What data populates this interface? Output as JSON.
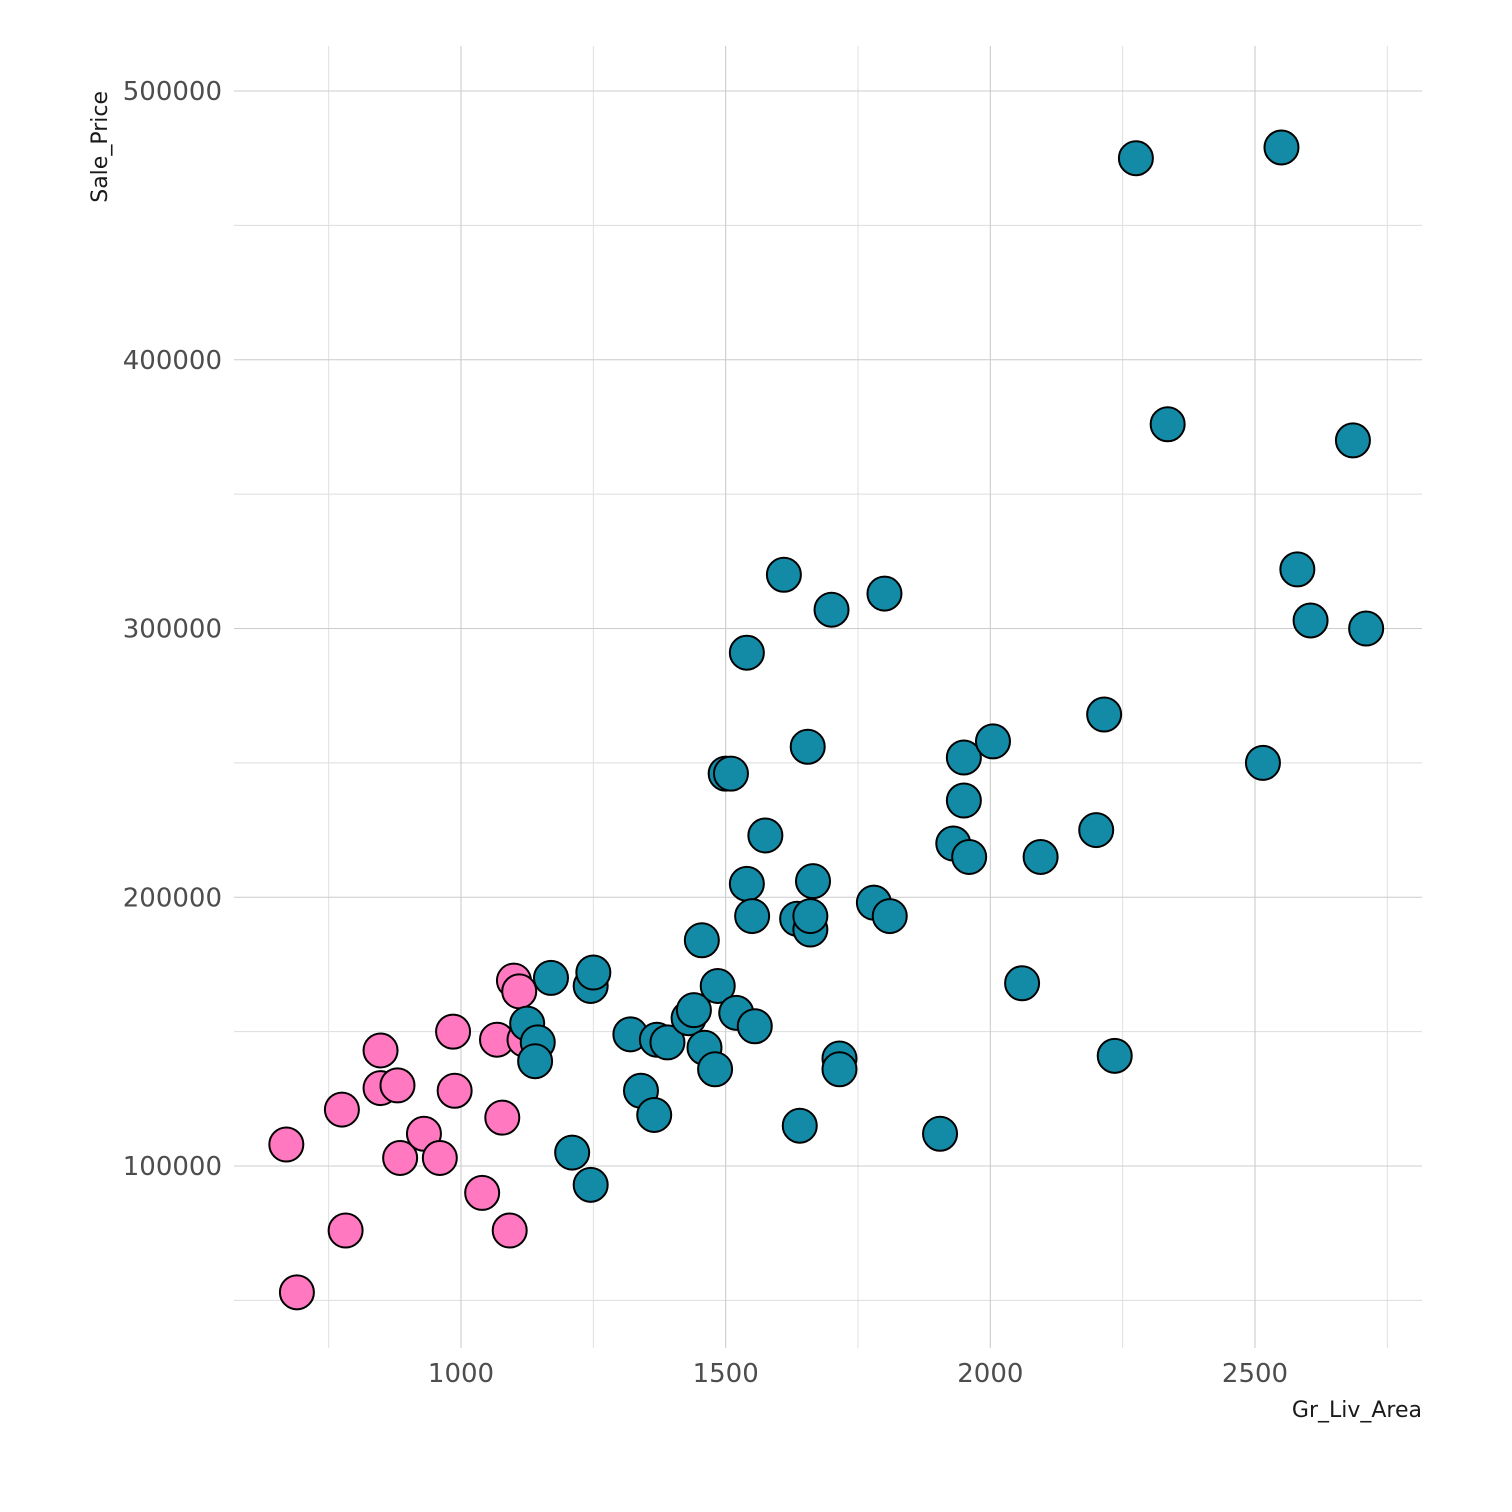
{
  "chart_data": {
    "type": "scatter",
    "title": "",
    "xlabel": "Gr_Liv_Area",
    "ylabel": "Sale_Price",
    "xlim": [
      550,
      2800
    ],
    "ylim": [
      30000,
      530000
    ],
    "x_ticks": [
      1000,
      1500,
      2000,
      2500
    ],
    "x_tick_labels": [
      "1000",
      "1500",
      "2000",
      "2500"
    ],
    "x_minor_ticks": [
      750,
      1250,
      1750,
      2250,
      2750
    ],
    "y_ticks": [
      100000,
      200000,
      300000,
      400000,
      500000
    ],
    "y_tick_labels": [
      "100000",
      "200000",
      "300000",
      "400000",
      "500000"
    ],
    "y_minor_ticks": [
      50000,
      150000,
      250000,
      350000,
      450000
    ],
    "grid": true,
    "legend": "none",
    "series": [
      {
        "color": "#ff78c0",
        "points": [
          [
            670,
            108000
          ],
          [
            690,
            53000
          ],
          [
            775,
            121000
          ],
          [
            782,
            76000
          ],
          [
            848,
            143000
          ],
          [
            848,
            129000
          ],
          [
            880,
            130000
          ],
          [
            885,
            103000
          ],
          [
            930,
            112000
          ],
          [
            960,
            103000
          ],
          [
            985,
            150000
          ],
          [
            988,
            128000
          ],
          [
            1040,
            90000
          ],
          [
            1068,
            147000
          ],
          [
            1078,
            118000
          ],
          [
            1092,
            76000
          ],
          [
            1100,
            169000
          ],
          [
            1110,
            165000
          ],
          [
            1120,
            147000
          ]
        ]
      },
      {
        "color": "#138ba6",
        "points": [
          [
            1125,
            153000
          ],
          [
            1145,
            146000
          ],
          [
            1140,
            139000
          ],
          [
            1170,
            170000
          ],
          [
            1210,
            105000
          ],
          [
            1245,
            167000
          ],
          [
            1250,
            172000
          ],
          [
            1245,
            93000
          ],
          [
            1320,
            149000
          ],
          [
            1340,
            128000
          ],
          [
            1365,
            119000
          ],
          [
            1370,
            147000
          ],
          [
            1390,
            146000
          ],
          [
            1430,
            155000
          ],
          [
            1440,
            158000
          ],
          [
            1455,
            184000
          ],
          [
            1460,
            144000
          ],
          [
            1480,
            136000
          ],
          [
            1485,
            167000
          ],
          [
            1500,
            246000
          ],
          [
            1510,
            246000
          ],
          [
            1520,
            157000
          ],
          [
            1540,
            291000
          ],
          [
            1540,
            205000
          ],
          [
            1550,
            193000
          ],
          [
            1555,
            152000
          ],
          [
            1575,
            223000
          ],
          [
            1610,
            320000
          ],
          [
            1635,
            192000
          ],
          [
            1640,
            115000
          ],
          [
            1655,
            256000
          ],
          [
            1660,
            188000
          ],
          [
            1665,
            206000
          ],
          [
            1660,
            193000
          ],
          [
            1700,
            307000
          ],
          [
            1715,
            140000
          ],
          [
            1715,
            136000
          ],
          [
            1780,
            198000
          ],
          [
            1800,
            313000
          ],
          [
            1810,
            193000
          ],
          [
            1905,
            112000
          ],
          [
            1930,
            220000
          ],
          [
            1950,
            236000
          ],
          [
            1950,
            252000
          ],
          [
            1960,
            215000
          ],
          [
            2005,
            258000
          ],
          [
            2060,
            168000
          ],
          [
            2095,
            215000
          ],
          [
            2200,
            225000
          ],
          [
            2215,
            268000
          ],
          [
            2235,
            141000
          ],
          [
            2275,
            475000
          ],
          [
            2335,
            376000
          ],
          [
            2515,
            250000
          ],
          [
            2550,
            479000
          ],
          [
            2580,
            322000
          ],
          [
            2605,
            303000
          ],
          [
            2685,
            370000
          ],
          [
            2710,
            300000
          ]
        ]
      }
    ]
  }
}
